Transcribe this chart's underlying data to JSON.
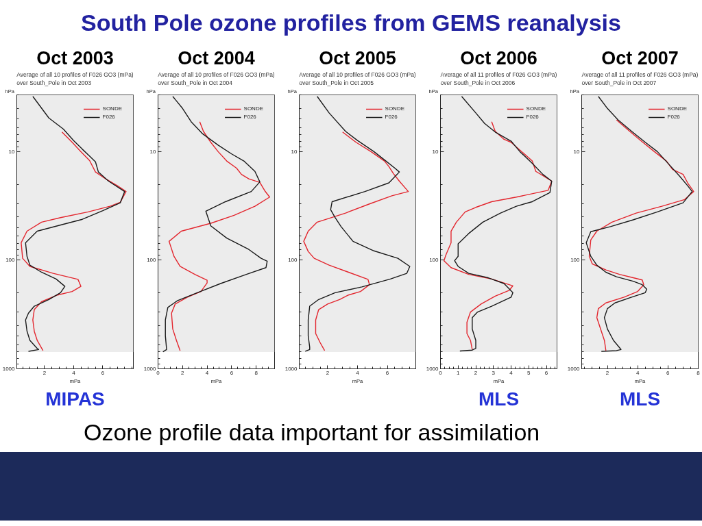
{
  "chart_data": [
    {
      "type": "other",
      "title": "South Pole ozone profiles from GEMS reanalysis",
      "annotations": [
        "Ozone profile data important for assimilation"
      ]
    },
    {
      "type": "line",
      "title": "Oct 2003",
      "subtitle": "Average of all 10 profiles of F026 GO3 (mPa)\nover South_Pole in Oct 2003",
      "xlabel": "mPa",
      "ylabel": "hPa",
      "annotations": [
        "MIPAS"
      ],
      "xlim": [
        0.1,
        8.1
      ],
      "xticks": [
        2,
        4,
        6
      ],
      "ylim": [
        1000,
        3
      ],
      "yticks": [
        10,
        100,
        1000
      ],
      "log": true,
      "legend": "top right",
      "bands": [
        {
          "axis": "y",
          "from": 700,
          "to": 3,
          "color": "#ececec"
        }
      ],
      "series": [
        {
          "name": "SONDE",
          "color": "#e3262e",
          "x": [
            3.2,
            3.9,
            4.5,
            5.1,
            5.5,
            6.2,
            7.0,
            7.6,
            7.2,
            6.5,
            5.0,
            3.1,
            1.8,
            0.8,
            0.4,
            0.5,
            1.0,
            2.6,
            4.3,
            4.5,
            3.9,
            2.9,
            1.8,
            1.3,
            1.2,
            1.3,
            1.5,
            1.9
          ],
          "values": [
            6.6,
            8.2,
            10,
            12.1,
            15.4,
            17.8,
            20.6,
            23.3,
            29.3,
            31.8,
            35.9,
            40.5,
            44.6,
            54,
            69,
            96,
            114,
            132,
            150,
            174,
            194,
            209,
            241,
            285,
            355,
            451,
            547,
            680
          ]
        },
        {
          "name": "F026",
          "color": "#1a1a1a",
          "x": [
            1.2,
            2.3,
            3.3,
            4.0,
            4.6,
            5.1,
            5.5,
            5.7,
            6.4,
            7.5,
            7.2,
            6.0,
            4.6,
            3.2,
            1.5,
            0.7,
            0.8,
            1.0,
            1.8,
            2.8,
            3.4,
            3.1,
            2.3,
            1.3,
            0.9,
            0.7,
            0.8,
            1.0,
            1.5,
            1.6,
            0.9
          ],
          "values": [
            3.1,
            4.9,
            6.2,
            7.9,
            9.5,
            11,
            12.4,
            15.4,
            18.7,
            23.3,
            29.6,
            35,
            42,
            47,
            54,
            69,
            92,
            111,
            129,
            149,
            174,
            199,
            230,
            265,
            307,
            355,
            450,
            547,
            650,
            665,
            690
          ]
        }
      ]
    },
    {
      "type": "line",
      "title": "Oct 2004",
      "subtitle": "Average of all 10 profiles of F026 GO3 (mPa)\nover South_Pole in Oct 2004",
      "xlabel": "mPa",
      "ylabel": "hPa",
      "xlim": [
        0,
        9.5
      ],
      "xticks": [
        0,
        2,
        4,
        6,
        8
      ],
      "ylim": [
        1000,
        3
      ],
      "yticks": [
        10,
        100,
        1000
      ],
      "log": true,
      "legend": "top right",
      "bands": [
        {
          "axis": "y",
          "from": 700,
          "to": 3,
          "color": "#ececec"
        }
      ],
      "series": [
        {
          "name": "SONDE",
          "color": "#e3262e",
          "x": [
            3.4,
            3.7,
            4.3,
            4.9,
            5.6,
            6.4,
            6.8,
            7.4,
            8.3,
            8.7,
            9.1,
            7.9,
            6.2,
            4.3,
            1.9,
            0.9,
            1.3,
            1.8,
            3.0,
            4.0,
            4.0,
            3.5,
            2.4,
            1.4,
            1.1,
            1.2,
            1.5,
            1.8
          ],
          "values": [
            5.3,
            6.5,
            8.2,
            10,
            12.2,
            14.2,
            16.2,
            17.8,
            19.2,
            22.9,
            26.2,
            31.8,
            38.6,
            45.7,
            54,
            67,
            92,
            114,
            135,
            153,
            162,
            194,
            219,
            253,
            307,
            430,
            547,
            680
          ]
        },
        {
          "name": "F026",
          "color": "#1a1a1a",
          "x": [
            1.2,
            2.0,
            2.7,
            3.6,
            4.9,
            6.0,
            7.0,
            7.9,
            8.3,
            7.6,
            5.5,
            3.9,
            4.3,
            5.6,
            7.4,
            8.4,
            8.9,
            8.8,
            7.2,
            5.1,
            3.2,
            1.6,
            0.8,
            0.6,
            0.6,
            0.7,
            0.4
          ],
          "values": [
            3.1,
            4.0,
            5.3,
            6.8,
            8.7,
            10.5,
            12.2,
            15.2,
            19.0,
            23.3,
            28.9,
            35.4,
            48.2,
            62.5,
            79.6,
            96,
            102,
            117,
            135,
            164,
            199,
            235,
            272,
            355,
            497,
            664,
            697
          ]
        }
      ]
    },
    {
      "type": "line",
      "title": "Oct 2005",
      "subtitle": "Average of all 10 profiles of F026 GO3 (mPa)\nover South_Pole in Oct 2005",
      "xlabel": "mPa",
      "ylabel": "hPa",
      "xlim": [
        0.1,
        7.9
      ],
      "xticks": [
        2,
        4,
        6
      ],
      "ylim": [
        1000,
        3
      ],
      "yticks": [
        10,
        100,
        1000
      ],
      "log": true,
      "legend": "top right",
      "bands": [
        {
          "axis": "y",
          "from": 700,
          "to": 3,
          "color": "#ececec"
        }
      ],
      "series": [
        {
          "name": "SONDE",
          "color": "#e3262e",
          "x": [
            3.0,
            3.9,
            4.9,
            5.8,
            6.1,
            6.4,
            6.8,
            7.4,
            6.3,
            4.8,
            3.2,
            1.3,
            0.7,
            0.4,
            0.7,
            1.1,
            2.1,
            3.4,
            4.7,
            4.8,
            4.2,
            3.4,
            2.8,
            2.0,
            1.4,
            1.2,
            1.2,
            1.5,
            1.8
          ],
          "values": [
            6.6,
            8.2,
            10,
            12.2,
            13.7,
            15.9,
            18.7,
            23.3,
            25.5,
            30.3,
            36.8,
            44.6,
            54,
            67,
            83,
            96,
            111,
            129,
            150,
            168,
            194,
            209,
            230,
            253,
            285,
            355,
            473,
            574,
            680
          ]
        },
        {
          "name": "F026",
          "color": "#1a1a1a",
          "x": [
            1.3,
            2.1,
            3.2,
            4.0,
            5.1,
            5.9,
            6.5,
            6.8,
            6.1,
            4.5,
            2.3,
            2.2,
            2.5,
            2.9,
            3.7,
            5.1,
            6.7,
            7.5,
            7.3,
            6.2,
            4.3,
            2.5,
            1.4,
            0.8,
            0.7,
            0.7,
            0.8,
            0.8,
            0.5
          ],
          "values": [
            3.1,
            4.4,
            6.5,
            7.9,
            10,
            12.2,
            14.2,
            15.4,
            19.4,
            23.3,
            28.9,
            34.2,
            40.5,
            49,
            67,
            82,
            96,
            114,
            132,
            149,
            176,
            199,
            230,
            265,
            355,
            497,
            632,
            664,
            690
          ]
        }
      ]
    },
    {
      "type": "line",
      "title": "Oct 2006",
      "subtitle": "Average of all 11 profiles of F026 GO3 (mPa)\nover South_Pole in Oct 2006",
      "xlabel": "mPa",
      "ylabel": "hPa",
      "annotations": [
        "MLS"
      ],
      "xlim": [
        0,
        6.6
      ],
      "xticks": [
        0,
        1,
        2,
        3,
        4,
        5,
        6
      ],
      "ylim": [
        1000,
        3
      ],
      "yticks": [
        10,
        100,
        1000
      ],
      "log": true,
      "legend": "top right",
      "bands": [
        {
          "axis": "y",
          "from": 700,
          "to": 3,
          "color": "#ececec"
        }
      ],
      "series": [
        {
          "name": "SONDE",
          "color": "#e3262e",
          "x": [
            2.9,
            3.1,
            3.6,
            4.0,
            4.6,
            5.2,
            5.4,
            5.8,
            6.3,
            6.1,
            4.3,
            2.9,
            2.0,
            1.4,
            0.9,
            0.6,
            0.6,
            0.3,
            0.2,
            0.6,
            1.6,
            2.9,
            4.1,
            3.9,
            3.1,
            2.3,
            1.7,
            1.5,
            1.5,
            1.7,
            1.8
          ],
          "values": [
            5.3,
            6.5,
            7.7,
            8.2,
            10,
            12.2,
            15.2,
            16.6,
            18.7,
            22.7,
            26.2,
            28.9,
            32.6,
            35.9,
            44.6,
            54,
            69,
            90,
            101,
            117,
            135,
            149,
            172,
            189,
            214,
            253,
            300,
            372,
            473,
            547,
            664
          ]
        },
        {
          "name": "F026",
          "color": "#1a1a1a",
          "x": [
            1.2,
            2.0,
            2.5,
            3.1,
            4.0,
            4.5,
            5.2,
            5.8,
            6.3,
            6.2,
            5.2,
            4.3,
            3.4,
            2.4,
            1.6,
            1.0,
            1.0,
            0.8,
            1.0,
            1.6,
            2.7,
            3.6,
            4.1,
            4.0,
            2.9,
            2.1,
            1.8,
            1.8,
            2.0,
            2.0,
            1.8,
            1.1
          ],
          "values": [
            3.1,
            4.4,
            5.5,
            6.6,
            8.0,
            10,
            12.8,
            16.2,
            18.7,
            23.8,
            28.9,
            31.8,
            36.8,
            44.6,
            56.7,
            70.5,
            92,
            101,
            114,
            132,
            145,
            164,
            199,
            219,
            265,
            300,
            338,
            430,
            547,
            649,
            673,
            686
          ]
        }
      ]
    },
    {
      "type": "line",
      "title": "Oct 2007",
      "subtitle": "Average of all 11 profiles of F026 GO3 (mPa)\nover South_Pole in Oct 2007",
      "xlabel": "mPa",
      "ylabel": "hPa",
      "annotations": [
        "MLS"
      ],
      "xlim": [
        0.3,
        8.0
      ],
      "xticks": [
        2,
        4,
        6,
        8
      ],
      "ylim": [
        1000,
        3
      ],
      "yticks": [
        10,
        100,
        1000
      ],
      "log": true,
      "legend": "top right",
      "bands": [
        {
          "axis": "y",
          "from": 700,
          "to": 3,
          "color": "#ececec"
        }
      ],
      "series": [
        {
          "name": "SONDE",
          "color": "#e3262e",
          "x": [
            2.6,
            3.3,
            4.2,
            5.1,
            5.9,
            6.3,
            7.0,
            7.3,
            7.7,
            7.1,
            5.6,
            3.9,
            2.3,
            1.3,
            0.9,
            0.8,
            1.0,
            1.9,
            2.8,
            3.7,
            4.3,
            4.4,
            4.0,
            3.1,
            1.9,
            1.4,
            1.3,
            1.6,
            1.8,
            1.9
          ],
          "values": [
            5.1,
            6.2,
            7.9,
            10,
            12.2,
            14.6,
            16.2,
            19.4,
            23.3,
            27.6,
            31.8,
            36.8,
            44.6,
            54,
            65,
            92,
            108,
            123,
            135,
            145,
            152,
            168,
            194,
            219,
            247,
            279,
            338,
            451,
            547,
            680
          ]
        },
        {
          "name": "F026",
          "color": "#1a1a1a",
          "x": [
            1.4,
            2.0,
            2.7,
            3.6,
            4.5,
            5.3,
            6.0,
            6.8,
            7.3,
            7.6,
            7.0,
            5.3,
            3.7,
            2.2,
            0.9,
            0.6,
            0.9,
            1.3,
            1.9,
            2.6,
            3.7,
            4.3,
            4.6,
            4.5,
            3.6,
            2.5,
            2.0,
            1.8,
            2.0,
            2.4,
            2.9,
            2.6,
            1.6
          ],
          "values": [
            3.1,
            4.0,
            5.1,
            6.5,
            8.2,
            10,
            12.8,
            17,
            20.6,
            23.3,
            29.6,
            35.9,
            42.5,
            49,
            54.6,
            69,
            92,
            111,
            129,
            142,
            156,
            168,
            185,
            199,
            219,
            247,
            279,
            338,
            430,
            547,
            664,
            680,
            690
          ]
        }
      ]
    }
  ]
}
